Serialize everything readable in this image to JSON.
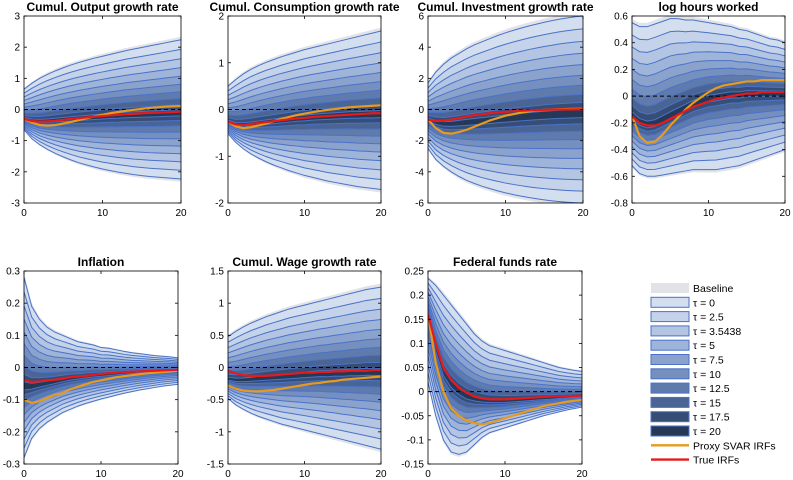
{
  "chart_data": {
    "type": "area",
    "description_series": "Impulse response fan charts; nested shaded bands for each tau setting, plus Proxy SVAR IRFs and True IRFs lines",
    "legend": {
      "entries": [
        {
          "label": "Baseline",
          "kind": "baseline"
        },
        {
          "label": "τ = 0",
          "kind": "band",
          "level": 0
        },
        {
          "label": "τ = 2.5",
          "kind": "band",
          "level": 1
        },
        {
          "label": "τ = 3.5438",
          "kind": "band",
          "level": 2
        },
        {
          "label": "τ = 5",
          "kind": "band",
          "level": 3
        },
        {
          "label": "τ = 7.5",
          "kind": "band",
          "level": 4
        },
        {
          "label": "τ = 10",
          "kind": "band",
          "level": 5
        },
        {
          "label": "τ = 12.5",
          "kind": "band",
          "level": 6
        },
        {
          "label": "τ = 15",
          "kind": "band",
          "level": 7
        },
        {
          "label": "τ = 17.5",
          "kind": "band",
          "level": 8
        },
        {
          "label": "τ = 20",
          "kind": "band",
          "level": 9
        },
        {
          "label": "Proxy SVAR IRFs",
          "kind": "line",
          "color": "#e69a1e"
        },
        {
          "label": "True IRFs",
          "kind": "line",
          "color": "#e41a1c"
        }
      ]
    },
    "colors": {
      "baseline": "#e1e3e8",
      "band_line": "#4a72c8",
      "proxy": "#e69a1e",
      "truth": "#e41a1c",
      "band_fills": [
        "#d3deef",
        "#c4d2ea",
        "#b3c5e3",
        "#9fb4d9",
        "#8aa2cc",
        "#7590bf",
        "#5f7aad",
        "#4a6494",
        "#364d76",
        "#253856"
      ]
    },
    "x": [
      0,
      1,
      2,
      3,
      4,
      5,
      6,
      7,
      8,
      9,
      10,
      11,
      12,
      13,
      14,
      15,
      16,
      17,
      18,
      19,
      20
    ],
    "panels": [
      {
        "title": "Cumul. Output growth rate",
        "xlim": [
          0,
          20
        ],
        "ylim": [
          -3,
          3
        ],
        "xticks": [
          0,
          10,
          20
        ],
        "yticks": [
          -3,
          -2,
          -1,
          0,
          1,
          2,
          3
        ],
        "center": [
          -0.3,
          -0.36,
          -0.38,
          -0.37,
          -0.35,
          -0.33,
          -0.31,
          -0.29,
          -0.27,
          -0.25,
          -0.23,
          -0.21,
          -0.2,
          -0.18,
          -0.17,
          -0.16,
          -0.15,
          -0.14,
          -0.13,
          -0.12,
          -0.11
        ],
        "upper": [
          0.65,
          0.84,
          1.0,
          1.13,
          1.24,
          1.34,
          1.43,
          1.51,
          1.58,
          1.65,
          1.71,
          1.77,
          1.83,
          1.89,
          1.94,
          1.99,
          2.04,
          2.09,
          2.14,
          2.19,
          2.24
        ],
        "lower": [
          -0.65,
          -0.94,
          -1.13,
          -1.28,
          -1.41,
          -1.52,
          -1.62,
          -1.71,
          -1.78,
          -1.85,
          -1.91,
          -1.96,
          -2.01,
          -2.05,
          -2.09,
          -2.12,
          -2.15,
          -2.17,
          -2.19,
          -2.21,
          -2.23
        ],
        "proxy": [
          -0.3,
          -0.42,
          -0.5,
          -0.52,
          -0.5,
          -0.45,
          -0.4,
          -0.34,
          -0.28,
          -0.22,
          -0.17,
          -0.12,
          -0.08,
          -0.04,
          -0.01,
          0.02,
          0.05,
          0.07,
          0.09,
          0.1,
          0.11
        ],
        "truth": [
          -0.3,
          -0.37,
          -0.39,
          -0.38,
          -0.36,
          -0.33,
          -0.3,
          -0.28,
          -0.25,
          -0.23,
          -0.21,
          -0.19,
          -0.17,
          -0.15,
          -0.14,
          -0.12,
          -0.11,
          -0.1,
          -0.09,
          -0.08,
          -0.07
        ]
      },
      {
        "title": "Cumul. Consumption growth rate",
        "xlim": [
          0,
          20
        ],
        "ylim": [
          -2,
          2
        ],
        "xticks": [
          0,
          10,
          20
        ],
        "yticks": [
          -2,
          -1,
          0,
          1,
          2
        ],
        "center": [
          -0.26,
          -0.32,
          -0.33,
          -0.32,
          -0.3,
          -0.28,
          -0.26,
          -0.24,
          -0.22,
          -0.2,
          -0.19,
          -0.17,
          -0.16,
          -0.15,
          -0.14,
          -0.13,
          -0.12,
          -0.12,
          -0.11,
          -0.11,
          -0.1
        ],
        "upper": [
          0.5,
          0.64,
          0.76,
          0.86,
          0.94,
          1.01,
          1.07,
          1.13,
          1.18,
          1.23,
          1.28,
          1.32,
          1.36,
          1.4,
          1.44,
          1.48,
          1.52,
          1.56,
          1.6,
          1.64,
          1.68
        ],
        "lower": [
          -0.52,
          -0.7,
          -0.84,
          -0.95,
          -1.04,
          -1.12,
          -1.19,
          -1.25,
          -1.31,
          -1.36,
          -1.41,
          -1.45,
          -1.49,
          -1.53,
          -1.56,
          -1.59,
          -1.62,
          -1.65,
          -1.67,
          -1.69,
          -1.71
        ],
        "proxy": [
          -0.26,
          -0.36,
          -0.4,
          -0.38,
          -0.34,
          -0.3,
          -0.25,
          -0.2,
          -0.16,
          -0.12,
          -0.09,
          -0.06,
          -0.03,
          -0.01,
          0.01,
          0.03,
          0.05,
          0.06,
          0.07,
          0.08,
          0.09
        ],
        "truth": [
          -0.26,
          -0.32,
          -0.33,
          -0.31,
          -0.29,
          -0.27,
          -0.25,
          -0.23,
          -0.21,
          -0.19,
          -0.18,
          -0.16,
          -0.15,
          -0.14,
          -0.13,
          -0.12,
          -0.11,
          -0.1,
          -0.09,
          -0.08,
          -0.08
        ]
      },
      {
        "title": "Cumul. Investment growth rate",
        "xlim": [
          0,
          20
        ],
        "ylim": [
          -6,
          6
        ],
        "xticks": [
          0,
          10,
          20
        ],
        "yticks": [
          -6,
          -4,
          -2,
          0,
          2,
          4,
          6
        ],
        "center": [
          -0.65,
          -0.85,
          -0.95,
          -0.95,
          -0.9,
          -0.85,
          -0.8,
          -0.75,
          -0.7,
          -0.65,
          -0.6,
          -0.55,
          -0.5,
          -0.46,
          -0.42,
          -0.38,
          -0.35,
          -0.32,
          -0.3,
          -0.28,
          -0.26
        ],
        "upper": [
          1.7,
          2.4,
          2.9,
          3.3,
          3.6,
          3.9,
          4.15,
          4.35,
          4.55,
          4.75,
          4.92,
          5.08,
          5.22,
          5.36,
          5.48,
          5.6,
          5.7,
          5.8,
          5.88,
          5.95,
          6.0
        ],
        "lower": [
          -2.5,
          -3.2,
          -3.65,
          -4.0,
          -4.3,
          -4.55,
          -4.75,
          -4.93,
          -5.08,
          -5.22,
          -5.35,
          -5.46,
          -5.56,
          -5.65,
          -5.73,
          -5.8,
          -5.86,
          -5.91,
          -5.95,
          -5.98,
          -6.0
        ],
        "proxy": [
          -0.65,
          -1.2,
          -1.5,
          -1.55,
          -1.45,
          -1.3,
          -1.1,
          -0.9,
          -0.7,
          -0.55,
          -0.4,
          -0.3,
          -0.2,
          -0.12,
          -0.06,
          -0.02,
          0.0,
          0.02,
          0.03,
          0.04,
          0.05
        ],
        "truth": [
          -0.65,
          -0.75,
          -0.72,
          -0.65,
          -0.55,
          -0.45,
          -0.37,
          -0.3,
          -0.24,
          -0.19,
          -0.15,
          -0.11,
          -0.08,
          -0.06,
          -0.04,
          -0.02,
          -0.01,
          0.0,
          0.0,
          0.01,
          0.01
        ]
      },
      {
        "title": "log hours worked",
        "xlim": [
          0,
          20
        ],
        "ylim": [
          -0.8,
          0.6
        ],
        "xticks": [
          0,
          10,
          20
        ],
        "yticks": [
          -0.8,
          -0.6,
          -0.4,
          -0.2,
          0,
          0.2,
          0.4,
          0.6
        ],
        "center": [
          -0.15,
          -0.2,
          -0.22,
          -0.21,
          -0.18,
          -0.15,
          -0.12,
          -0.09,
          -0.06,
          -0.04,
          -0.02,
          -0.01,
          0.0,
          0.01,
          0.01,
          0.02,
          0.02,
          0.02,
          0.02,
          0.02,
          0.02
        ],
        "upper": [
          0.55,
          0.52,
          0.52,
          0.54,
          0.56,
          0.58,
          0.58,
          0.57,
          0.57,
          0.56,
          0.55,
          0.54,
          0.53,
          0.52,
          0.5,
          0.49,
          0.47,
          0.45,
          0.43,
          0.42,
          0.4
        ],
        "lower": [
          -0.52,
          -0.58,
          -0.6,
          -0.6,
          -0.59,
          -0.58,
          -0.57,
          -0.56,
          -0.55,
          -0.55,
          -0.55,
          -0.55,
          -0.54,
          -0.53,
          -0.52,
          -0.5,
          -0.48,
          -0.46,
          -0.44,
          -0.42,
          -0.4
        ],
        "proxy": [
          -0.15,
          -0.3,
          -0.35,
          -0.34,
          -0.29,
          -0.22,
          -0.16,
          -0.1,
          -0.05,
          -0.01,
          0.03,
          0.06,
          0.08,
          0.09,
          0.1,
          0.11,
          0.11,
          0.12,
          0.12,
          0.12,
          0.12
        ],
        "truth": [
          -0.15,
          -0.2,
          -0.22,
          -0.22,
          -0.2,
          -0.17,
          -0.14,
          -0.11,
          -0.08,
          -0.06,
          -0.04,
          -0.02,
          -0.01,
          0.0,
          0.01,
          0.02,
          0.02,
          0.03,
          0.03,
          0.03,
          0.03
        ]
      },
      {
        "title": "Inflation",
        "xlim": [
          0,
          20
        ],
        "ylim": [
          -0.3,
          0.3
        ],
        "xticks": [
          0,
          10,
          20
        ],
        "yticks": [
          -0.3,
          -0.2,
          -0.1,
          0,
          0.1,
          0.2,
          0.3
        ],
        "center": [
          -0.06,
          -0.06,
          -0.055,
          -0.05,
          -0.045,
          -0.04,
          -0.035,
          -0.032,
          -0.029,
          -0.026,
          -0.024,
          -0.022,
          -0.02,
          -0.018,
          -0.016,
          -0.014,
          -0.012,
          -0.01,
          -0.009,
          -0.008,
          -0.007
        ],
        "upper": [
          0.28,
          0.19,
          0.15,
          0.125,
          0.11,
          0.1,
          0.09,
          0.08,
          0.075,
          0.07,
          0.062,
          0.06,
          0.055,
          0.05,
          0.046,
          0.043,
          0.04,
          0.037,
          0.035,
          0.033,
          0.03
        ],
        "lower": [
          -0.28,
          -0.22,
          -0.19,
          -0.17,
          -0.155,
          -0.14,
          -0.13,
          -0.12,
          -0.112,
          -0.105,
          -0.098,
          -0.092,
          -0.086,
          -0.08,
          -0.075,
          -0.07,
          -0.066,
          -0.062,
          -0.058,
          -0.055,
          -0.052
        ],
        "proxy": [
          -0.1,
          -0.11,
          -0.105,
          -0.095,
          -0.085,
          -0.08,
          -0.068,
          -0.06,
          -0.052,
          -0.045,
          -0.04,
          -0.035,
          -0.03,
          -0.027,
          -0.024,
          -0.021,
          -0.018,
          -0.016,
          -0.014,
          -0.012,
          -0.01
        ],
        "truth": [
          -0.04,
          -0.045,
          -0.043,
          -0.04,
          -0.038,
          -0.035,
          -0.03,
          -0.028,
          -0.026,
          -0.023,
          -0.02,
          -0.018,
          -0.016,
          -0.014,
          -0.013,
          -0.012,
          -0.011,
          -0.01,
          -0.009,
          -0.008,
          -0.007
        ]
      },
      {
        "title": "Cumul. Wage growth rate",
        "xlim": [
          0,
          20
        ],
        "ylim": [
          -1.5,
          1.5
        ],
        "xticks": [
          0,
          10,
          20
        ],
        "yticks": [
          -1.5,
          -1,
          -0.5,
          0,
          0.5,
          1,
          1.5
        ],
        "center": [
          -0.18,
          -0.2,
          -0.2,
          -0.19,
          -0.18,
          -0.17,
          -0.16,
          -0.15,
          -0.14,
          -0.13,
          -0.12,
          -0.11,
          -0.1,
          -0.1,
          -0.09,
          -0.09,
          -0.08,
          -0.08,
          -0.07,
          -0.07,
          -0.07
        ],
        "upper": [
          0.48,
          0.56,
          0.63,
          0.69,
          0.74,
          0.79,
          0.83,
          0.87,
          0.91,
          0.94,
          0.97,
          1.0,
          1.03,
          1.06,
          1.09,
          1.12,
          1.15,
          1.18,
          1.21,
          1.23,
          1.25
        ],
        "lower": [
          -0.48,
          -0.58,
          -0.65,
          -0.71,
          -0.76,
          -0.8,
          -0.84,
          -0.88,
          -0.91,
          -0.94,
          -0.97,
          -1.0,
          -1.03,
          -1.06,
          -1.09,
          -1.12,
          -1.15,
          -1.18,
          -1.21,
          -1.24,
          -1.27
        ],
        "proxy": [
          -0.28,
          -0.33,
          -0.36,
          -0.37,
          -0.37,
          -0.36,
          -0.35,
          -0.33,
          -0.31,
          -0.29,
          -0.27,
          -0.25,
          -0.24,
          -0.22,
          -0.21,
          -0.19,
          -0.18,
          -0.17,
          -0.16,
          -0.15,
          -0.14
        ],
        "truth": [
          -0.05,
          -0.09,
          -0.12,
          -0.13,
          -0.13,
          -0.13,
          -0.12,
          -0.11,
          -0.1,
          -0.09,
          -0.08,
          -0.08,
          -0.07,
          -0.07,
          -0.06,
          -0.06,
          -0.05,
          -0.05,
          -0.05,
          -0.04,
          -0.04
        ]
      },
      {
        "title": "Federal funds rate",
        "xlim": [
          0,
          20
        ],
        "ylim": [
          -0.15,
          0.25
        ],
        "xticks": [
          0,
          10,
          20
        ],
        "yticks": [
          -0.15,
          -0.1,
          -0.05,
          0,
          0.05,
          0.1,
          0.15,
          0.2,
          0.25
        ],
        "center": [
          0.16,
          0.09,
          0.04,
          0.015,
          0.0,
          -0.01,
          -0.015,
          -0.018,
          -0.02,
          -0.02,
          -0.02,
          -0.019,
          -0.018,
          -0.017,
          -0.016,
          -0.015,
          -0.014,
          -0.013,
          -0.012,
          -0.011,
          -0.01
        ],
        "upper": [
          0.235,
          0.22,
          0.2,
          0.18,
          0.16,
          0.14,
          0.12,
          0.105,
          0.095,
          0.09,
          0.085,
          0.08,
          0.075,
          0.07,
          0.065,
          0.06,
          0.055,
          0.05,
          0.047,
          0.044,
          0.042
        ],
        "lower": [
          0.02,
          -0.05,
          -0.1,
          -0.125,
          -0.13,
          -0.125,
          -0.11,
          -0.095,
          -0.085,
          -0.08,
          -0.075,
          -0.07,
          -0.065,
          -0.06,
          -0.055,
          -0.05,
          -0.046,
          -0.042,
          -0.038,
          -0.035,
          -0.032
        ],
        "proxy": [
          0.16,
          0.06,
          0.0,
          -0.035,
          -0.05,
          -0.06,
          -0.065,
          -0.068,
          -0.065,
          -0.06,
          -0.055,
          -0.05,
          -0.045,
          -0.04,
          -0.035,
          -0.03,
          -0.027,
          -0.024,
          -0.021,
          -0.019,
          -0.017
        ],
        "truth": [
          0.16,
          0.1,
          0.05,
          0.025,
          0.008,
          -0.002,
          -0.01,
          -0.014,
          -0.016,
          -0.016,
          -0.016,
          -0.015,
          -0.014,
          -0.013,
          -0.012,
          -0.011,
          -0.01,
          -0.01,
          -0.009,
          -0.009,
          -0.008
        ]
      }
    ]
  }
}
